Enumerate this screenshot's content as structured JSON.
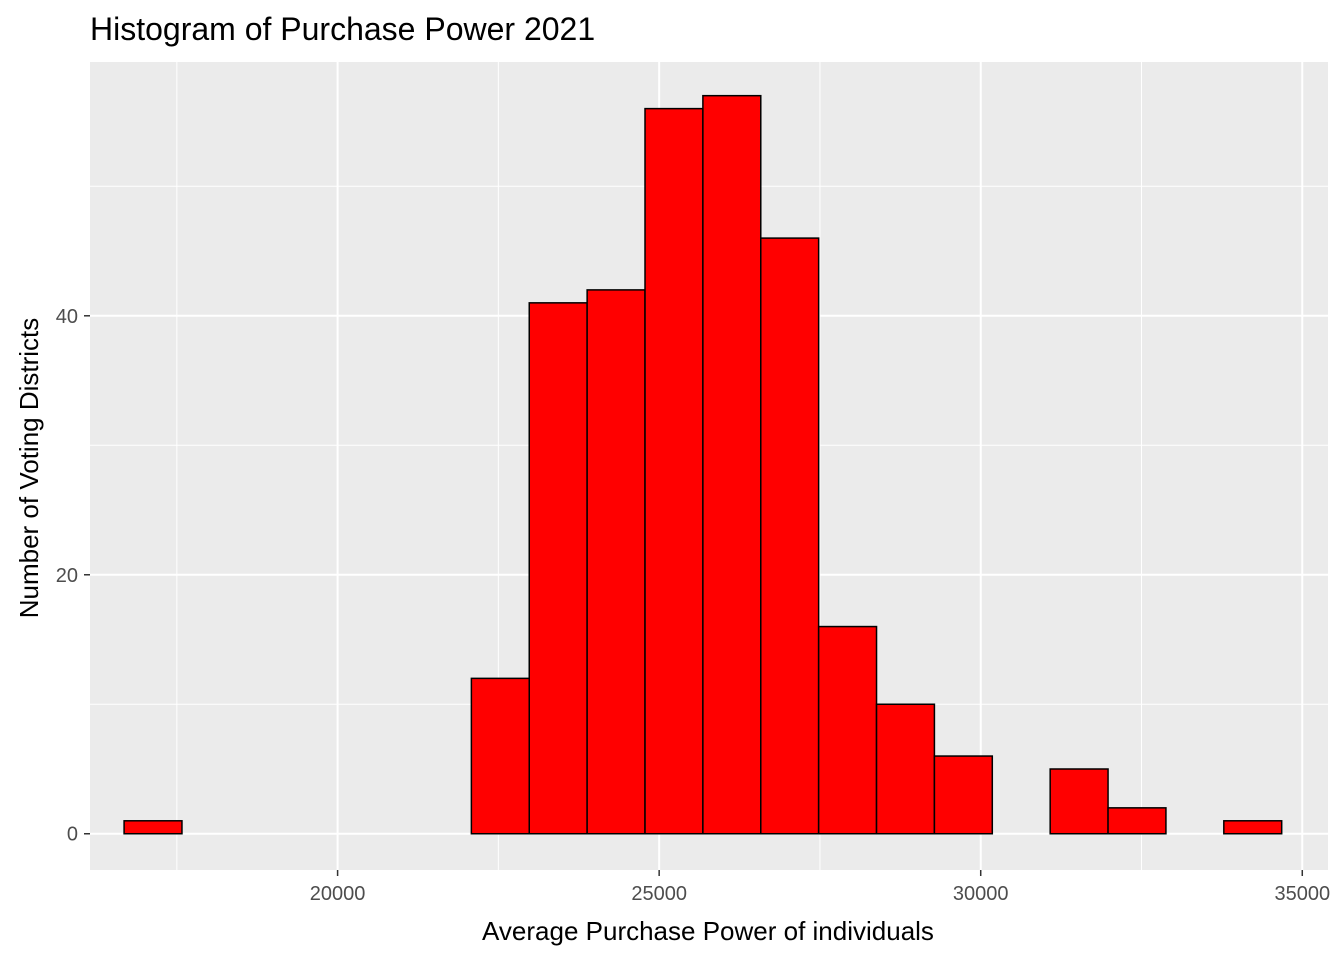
{
  "chart_data": {
    "type": "bar",
    "title": "Histogram of Purchase Power 2021",
    "xlabel": "Average Purchase Power of individuals",
    "ylabel": "Number of Voting Districts",
    "xlim": [
      16150,
      35400
    ],
    "ylim": [
      -2.8,
      59.6
    ],
    "x_ticks": [
      20000,
      25000,
      30000,
      35000
    ],
    "y_ticks": [
      0,
      20,
      40
    ],
    "grid": true,
    "panel_background": "#ebebeb",
    "bar_fill": "#ff0000",
    "bar_outline": "#000000",
    "bins": [
      {
        "x0": 16680,
        "x1": 17580,
        "count": 1
      },
      {
        "x0": 17580,
        "x1": 18480,
        "count": 0
      },
      {
        "x0": 18480,
        "x1": 19380,
        "count": 0
      },
      {
        "x0": 19380,
        "x1": 20280,
        "count": 0
      },
      {
        "x0": 20280,
        "x1": 21180,
        "count": 0
      },
      {
        "x0": 21180,
        "x1": 22080,
        "count": 0
      },
      {
        "x0": 22080,
        "x1": 22980,
        "count": 12
      },
      {
        "x0": 22980,
        "x1": 23880,
        "count": 41
      },
      {
        "x0": 23880,
        "x1": 24780,
        "count": 42
      },
      {
        "x0": 24780,
        "x1": 25680,
        "count": 56
      },
      {
        "x0": 25680,
        "x1": 26580,
        "count": 57
      },
      {
        "x0": 26580,
        "x1": 27480,
        "count": 46
      },
      {
        "x0": 27480,
        "x1": 28380,
        "count": 16
      },
      {
        "x0": 28380,
        "x1": 29280,
        "count": 10
      },
      {
        "x0": 29280,
        "x1": 30180,
        "count": 6
      },
      {
        "x0": 30180,
        "x1": 31080,
        "count": 0
      },
      {
        "x0": 31080,
        "x1": 31980,
        "count": 5
      },
      {
        "x0": 31980,
        "x1": 32880,
        "count": 2
      },
      {
        "x0": 32880,
        "x1": 33780,
        "count": 0
      },
      {
        "x0": 33780,
        "x1": 34680,
        "count": 1
      }
    ]
  }
}
